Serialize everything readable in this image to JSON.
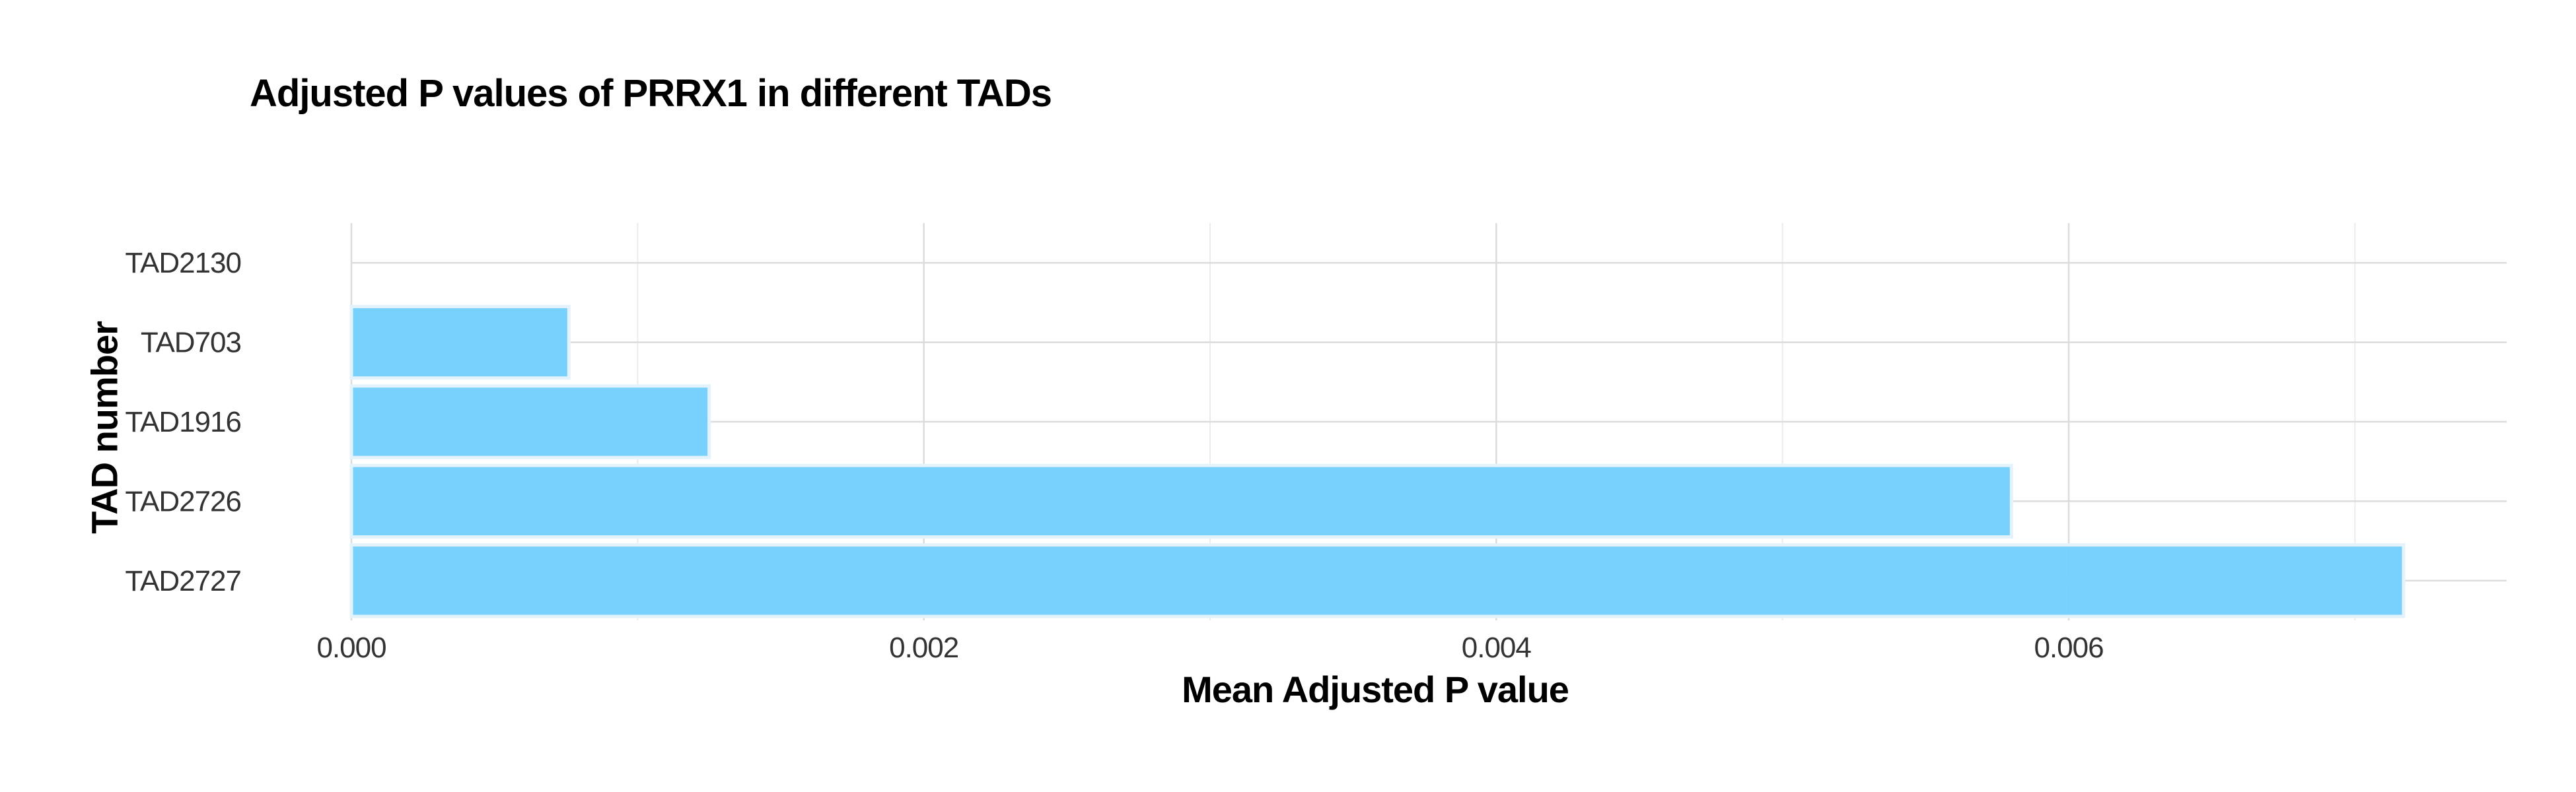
{
  "chart_data": {
    "type": "bar",
    "orientation": "horizontal",
    "title": "Adjusted P values of PRRX1 in different TADs",
    "xlabel": "Mean Adjusted P value",
    "ylabel": "TAD number",
    "categories": [
      "TAD2130",
      "TAD703",
      "TAD1916",
      "TAD2726",
      "TAD2727"
    ],
    "values": [
      0.0,
      0.00076,
      0.00125,
      0.0058,
      0.00717
    ],
    "xlim": [
      0.0,
      0.00753
    ],
    "xticks": [
      0.0,
      0.002,
      0.004,
      0.006
    ],
    "xtick_labels": [
      "0.000",
      "0.002",
      "0.004",
      "0.006"
    ],
    "grid": true,
    "bar_color": "#74cefc",
    "bar_edge_color": "#e4f3fb",
    "grid_color": "#dcdcdc"
  }
}
